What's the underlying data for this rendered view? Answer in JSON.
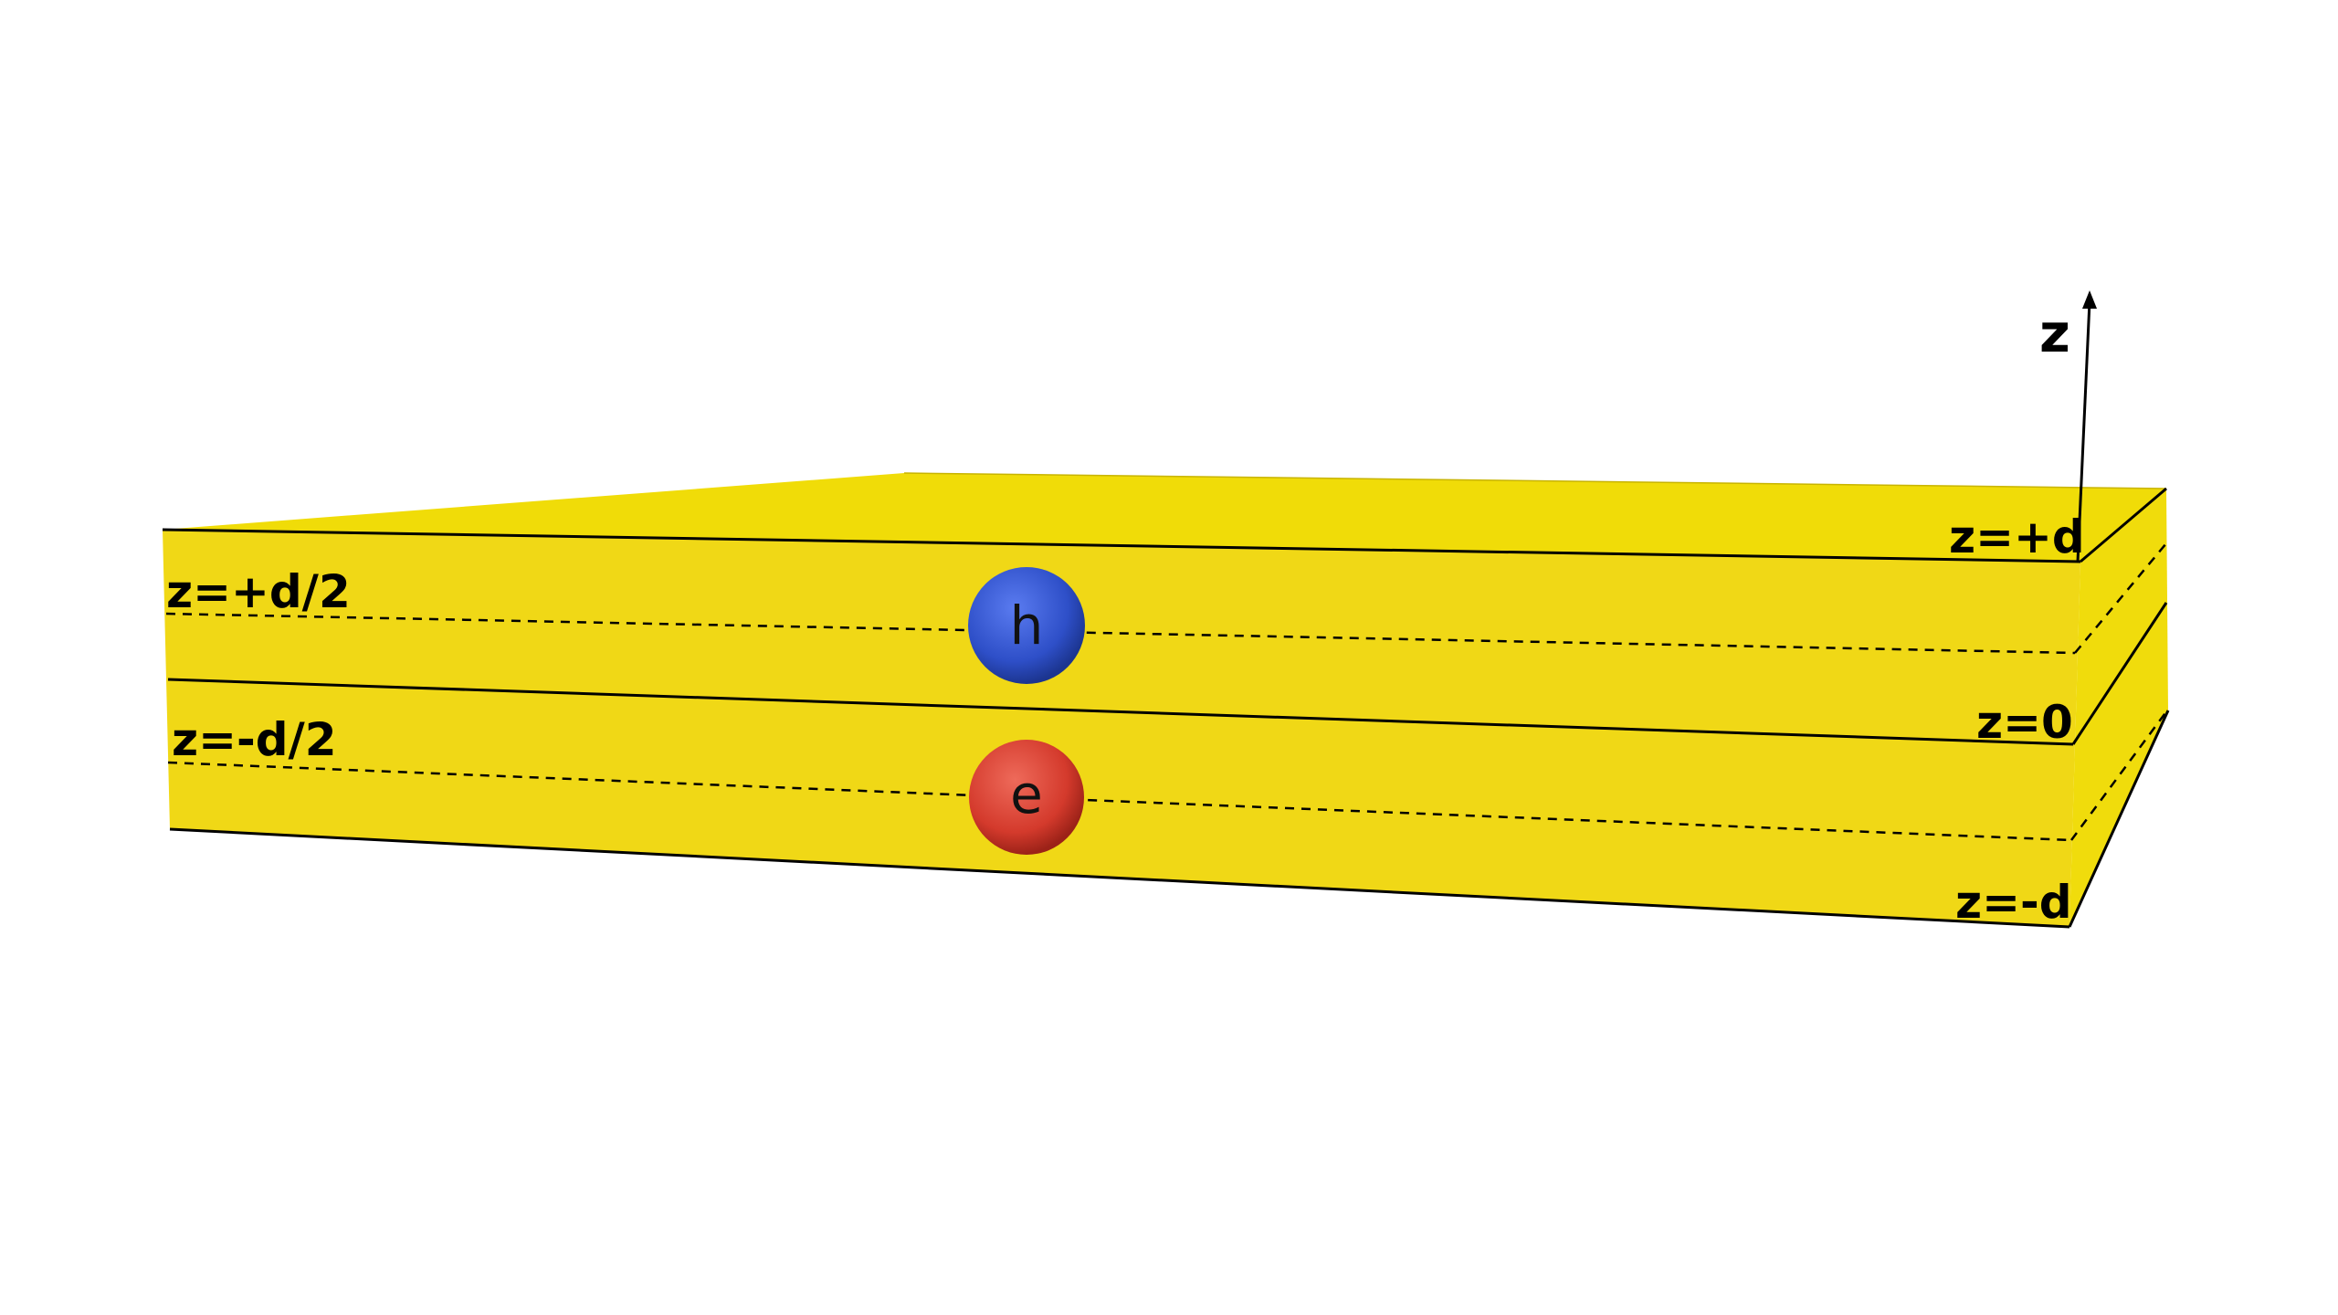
{
  "colors": {
    "slab_front": "#f0d816",
    "slab_top": "#f0dc08",
    "slab_side": "#f0dc0c",
    "hole": "#2e4fc8",
    "electron": "#d43a2c",
    "background": "#ffffff"
  },
  "axis": {
    "label": "z"
  },
  "planes": {
    "top": "z=+d",
    "upper_mid": "z=+d/2",
    "middle": "z=0",
    "lower_mid": "z=-d/2",
    "bottom": "z=-d"
  },
  "particles": {
    "hole": "h",
    "electron": "e"
  }
}
